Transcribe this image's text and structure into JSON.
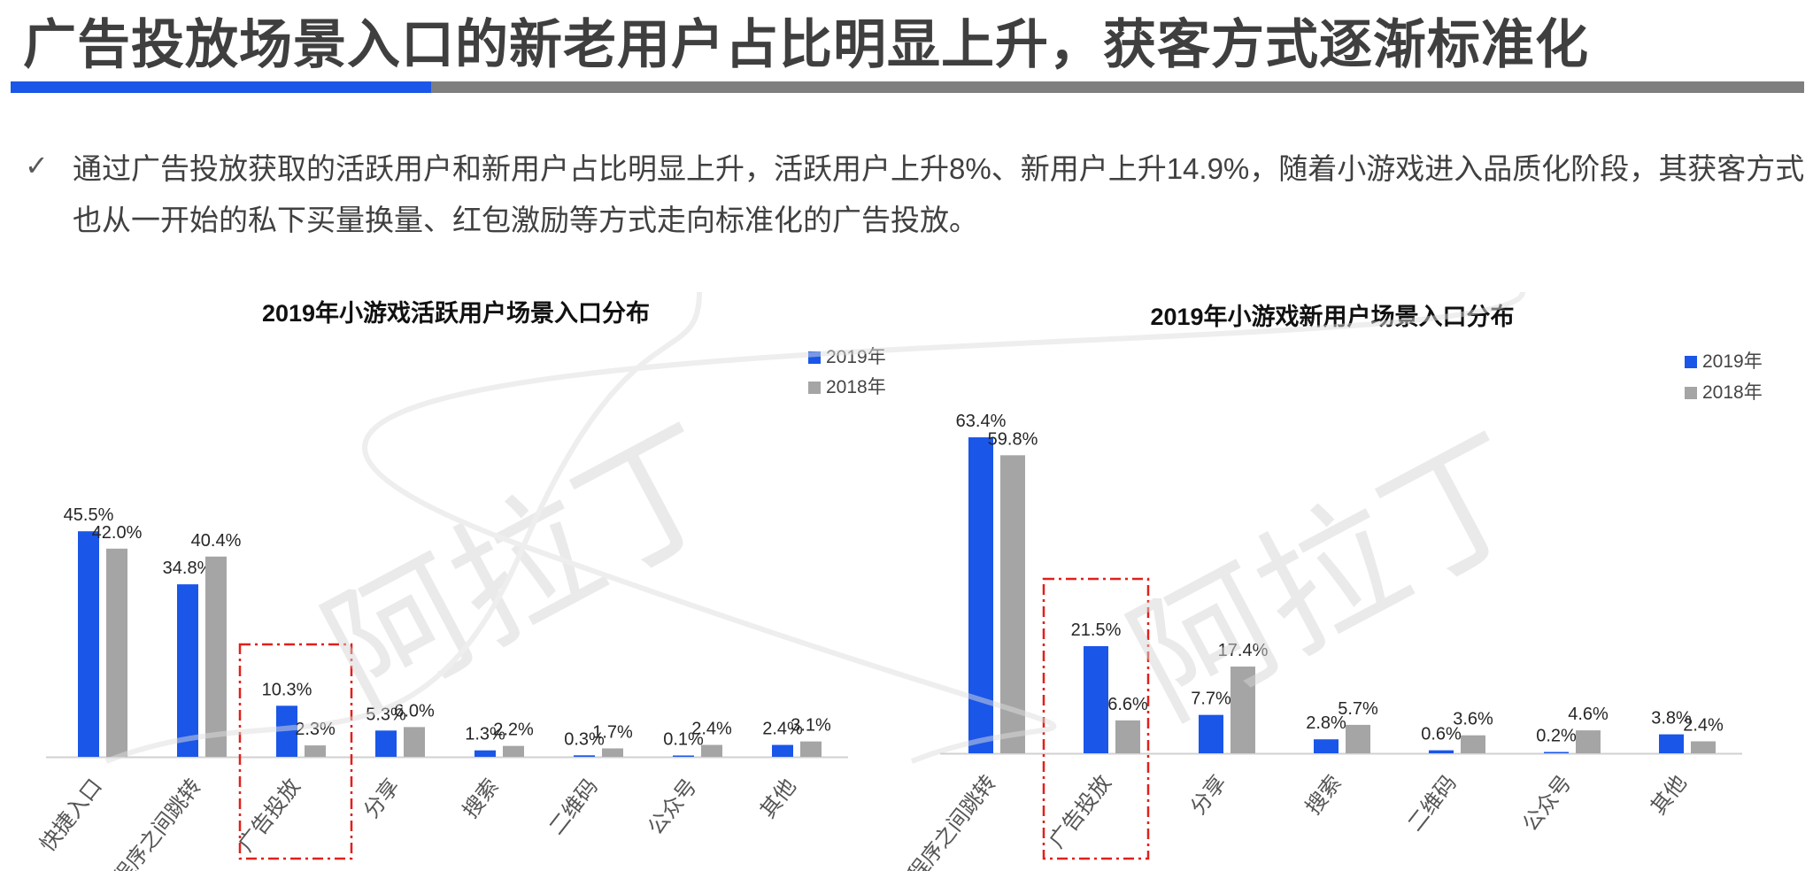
{
  "header": {
    "title": "广告投放场景入口的新老用户占比明显上升，获客方式逐渐标准化"
  },
  "bullet": {
    "check_icon": "check-icon",
    "text": "通过广告投放获取的活跃用户和新用户占比明显上升，活跃用户上升8%、新用户上升14.9%，随着小游戏进入品质化阶段，其获客方式也从一开始的私下买量换量、红包激励等方式走向标准化的广告投放。"
  },
  "watermark": {
    "text": "阿拉丁"
  },
  "colors": {
    "accent_blue": "#1a56e8",
    "series_gray": "#a5a5a5",
    "rule_gray": "#7f7f7f",
    "highlight_red": "#e0201b"
  },
  "chart_data": [
    {
      "type": "bar",
      "title": "2019年小游戏活跃用户场景入口分布",
      "categories": [
        "快捷入口",
        "小程序之间跳转",
        "广告投放",
        "分享",
        "搜索",
        "二维码",
        "公众号",
        "其他"
      ],
      "series": [
        {
          "name": "2019年",
          "color": "#1a56e8",
          "values": [
            45.5,
            34.8,
            10.3,
            5.3,
            1.3,
            0.3,
            0.1,
            2.4
          ],
          "labels": [
            "45.5%",
            "34.8%",
            "10.3%",
            "5.3%",
            "1.3%",
            "0.3%",
            "0.1%",
            "2.4%"
          ]
        },
        {
          "name": "2018年",
          "color": "#a5a5a5",
          "values": [
            42.0,
            40.4,
            2.3,
            6.0,
            2.2,
            1.7,
            2.4,
            3.1
          ],
          "labels": [
            "42.0%",
            "40.4%",
            "2.3%",
            "6.0%",
            "2.2%",
            "1.7%",
            "2.4%",
            "3.1%"
          ]
        }
      ],
      "ylim": [
        0,
        50
      ],
      "legend": "top-right",
      "grid": false,
      "highlight_category": "广告投放",
      "xlabel": "",
      "ylabel": ""
    },
    {
      "type": "bar",
      "title": "2019年小游戏新用户场景入口分布",
      "categories": [
        "小程序之间跳转",
        "广告投放",
        "分享",
        "搜索",
        "二维码",
        "公众号",
        "其他"
      ],
      "series": [
        {
          "name": "2019年",
          "color": "#1a56e8",
          "values": [
            63.4,
            21.5,
            7.7,
            2.8,
            0.6,
            0.2,
            3.8
          ],
          "labels": [
            "63.4%",
            "21.5%",
            "7.7%",
            "2.8%",
            "0.6%",
            "0.2%",
            "3.8%"
          ]
        },
        {
          "name": "2018年",
          "color": "#a5a5a5",
          "values": [
            59.8,
            6.6,
            17.4,
            5.7,
            3.6,
            4.6,
            2.4
          ],
          "labels": [
            "59.8%",
            "6.6%",
            "17.4%",
            "5.7%",
            "3.6%",
            "4.6%",
            "2.4%"
          ]
        }
      ],
      "ylim": [
        0,
        70
      ],
      "legend": "top-right",
      "grid": false,
      "highlight_category": "广告投放",
      "xlabel": "",
      "ylabel": ""
    }
  ]
}
